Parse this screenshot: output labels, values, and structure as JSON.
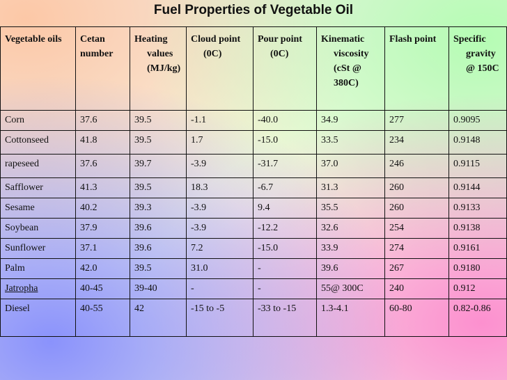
{
  "title": "Fuel Properties of Vegetable Oil",
  "columns": [
    "Vegetable oils",
    "Cetan number",
    "Heating values (MJ/kg)",
    "Cloud point (0C)",
    "Pour point (0C)",
    "Kinematic viscosity (cSt @ 380C)",
    "Flash point",
    "Specific gravity @ 150C"
  ],
  "rows": [
    [
      "Corn",
      "37.6",
      "39.5",
      "-1.1",
      "-40.0",
      "34.9",
      "277",
      "0.9095"
    ],
    [
      "Cottonseed",
      "41.8",
      "39.5",
      "1.7",
      "-15.0",
      "33.5",
      "234",
      "0.9148"
    ],
    [
      "rapeseed",
      "37.6",
      "39.7",
      "-3.9",
      "-31.7",
      "37.0",
      "246",
      "0.9115"
    ],
    [
      "Safflower",
      "41.3",
      "39.5",
      "18.3",
      "-6.7",
      "31.3",
      "260",
      "0.9144"
    ],
    [
      "Sesame",
      "40.2",
      "39.3",
      "-3.9",
      "9.4",
      "35.5",
      "260",
      "0.9133"
    ],
    [
      "Soybean",
      "37.9",
      "39.6",
      "-3.9",
      "-12.2",
      "32.6",
      "254",
      "0.9138"
    ],
    [
      "Sunflower",
      "37.1",
      "39.6",
      "7.2",
      "-15.0",
      "33.9",
      "274",
      "0.9161"
    ],
    [
      "Palm",
      "42.0",
      "39.5",
      "31.0",
      "-",
      "39.6",
      "267",
      "0.9180"
    ],
    [
      "Jatropha",
      "40-45",
      "39-40",
      "-",
      "-",
      "55@ 300C",
      "240",
      "0.912"
    ],
    [
      "Diesel",
      "40-55",
      "42",
      "-15 to -5",
      "-33 to -15",
      "1.3-4.1",
      "60-80",
      "0.82-0.86"
    ]
  ]
}
